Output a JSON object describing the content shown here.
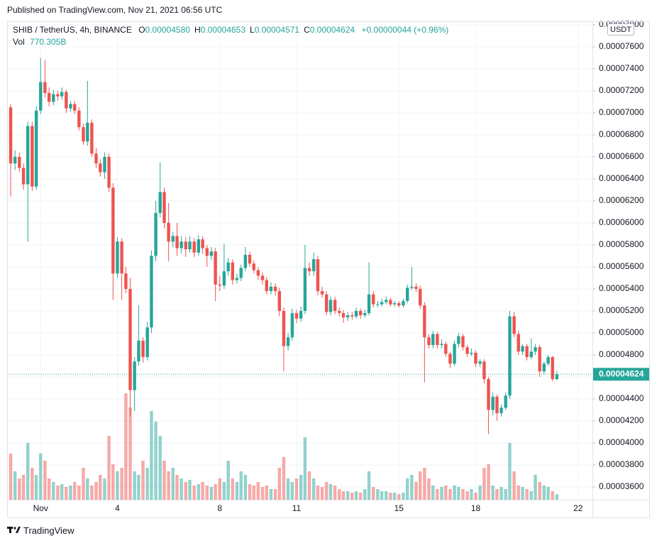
{
  "header": {
    "published": "Published on TradingView.com, Nov 21, 2021 06:56 UTC"
  },
  "footer": {
    "brand": "TradingView"
  },
  "chart_data": {
    "type": "candlestick",
    "legend": {
      "symbol": "SHIB / TetherUS, 4h, BINANCE",
      "fields": [
        {
          "key": "O",
          "value": "0.00004580"
        },
        {
          "key": "H",
          "value": "0.00004653"
        },
        {
          "key": "L",
          "value": "0.00004571"
        },
        {
          "key": "C",
          "value": "0.00004624"
        }
      ],
      "change": "+0.00000044 (+0.96%)",
      "volume_key": "Vol",
      "volume_label": "770.305B"
    },
    "currency": "USDT",
    "last_price_label": "0.00004624",
    "up_color": "#26a69a",
    "down_color": "#ef5350",
    "grid": true,
    "xlim": [
      -0.31,
      22.56
    ],
    "xticks": [
      {
        "value": 1,
        "label": "Nov"
      },
      4,
      8,
      11,
      15,
      18,
      22
    ],
    "ylim": [
      3.484e-05,
      7.832e-05
    ],
    "yticks": [
      {
        "value": 3.6e-05,
        "label": "0.00003600"
      },
      {
        "value": 3.8e-05,
        "label": "0.00003800"
      },
      {
        "value": 4e-05,
        "label": "0.00004000"
      },
      {
        "value": 4.2e-05,
        "label": "0.00004200"
      },
      {
        "value": 4.4e-05,
        "label": "0.00004400"
      },
      {
        "value": 4.6e-05,
        "label": "0.00004600"
      },
      {
        "value": 4.8e-05,
        "label": "0.00004800"
      },
      {
        "value": 5e-05,
        "label": "0.00005000"
      },
      {
        "value": 5.2e-05,
        "label": "0.00005200"
      },
      {
        "value": 5.4e-05,
        "label": "0.00005400"
      },
      {
        "value": 5.6e-05,
        "label": "0.00005600"
      },
      {
        "value": 5.8e-05,
        "label": "0.00005800"
      },
      {
        "value": 6e-05,
        "label": "0.00006000"
      },
      {
        "value": 6.2e-05,
        "label": "0.00006200"
      },
      {
        "value": 6.4e-05,
        "label": "0.00006400"
      },
      {
        "value": 6.6e-05,
        "label": "0.00006600"
      },
      {
        "value": 6.8e-05,
        "label": "0.00006800"
      },
      {
        "value": 7e-05,
        "label": "0.00007000"
      },
      {
        "value": 7.2e-05,
        "label": "0.00007200"
      },
      {
        "value": 7.4e-05,
        "label": "0.00007400"
      },
      {
        "value": 7.6e-05,
        "label": "0.00007600"
      },
      {
        "value": 7.8e-05,
        "label": "0.00007800"
      }
    ],
    "x": [
      -0.17,
      0,
      0.17,
      0.33,
      0.5,
      0.67,
      0.83,
      1,
      1.17,
      1.33,
      1.5,
      1.67,
      1.83,
      2,
      2.17,
      2.33,
      2.5,
      2.67,
      2.83,
      3,
      3.17,
      3.33,
      3.5,
      3.67,
      3.83,
      4,
      4.17,
      4.33,
      4.5,
      4.67,
      4.83,
      5,
      5.17,
      5.33,
      5.5,
      5.67,
      5.83,
      6,
      6.17,
      6.33,
      6.5,
      6.67,
      6.83,
      7,
      7.17,
      7.33,
      7.5,
      7.67,
      7.83,
      8,
      8.17,
      8.33,
      8.5,
      8.67,
      8.83,
      9,
      9.17,
      9.33,
      9.5,
      9.67,
      9.83,
      10,
      10.17,
      10.33,
      10.5,
      10.67,
      10.83,
      11,
      11.17,
      11.33,
      11.5,
      11.67,
      11.83,
      12,
      12.17,
      12.33,
      12.5,
      12.67,
      12.83,
      13,
      13.17,
      13.33,
      13.5,
      13.67,
      13.83,
      14,
      14.17,
      14.33,
      14.5,
      14.67,
      14.83,
      15,
      15.17,
      15.33,
      15.5,
      15.67,
      15.83,
      16,
      16.17,
      16.33,
      16.5,
      16.67,
      16.83,
      17,
      17.17,
      17.33,
      17.5,
      17.67,
      17.83,
      18,
      18.17,
      18.33,
      18.5,
      18.67,
      18.83,
      19,
      19.17,
      19.33,
      19.5,
      19.67,
      19.83,
      20,
      20.17,
      20.33,
      20.5,
      20.67,
      20.83,
      21,
      21.17
    ],
    "open": [
      7.05e-05,
      6.54e-05,
      6.6e-05,
      6.5e-05,
      6.35e-05,
      6.88e-05,
      6.33e-05,
      7.02e-05,
      7.28e-05,
      7.18e-05,
      7.1e-05,
      7.17e-05,
      7.15e-05,
      7.19e-05,
      7.04e-05,
      7.08e-05,
      7.02e-05,
      6.87e-05,
      6.74e-05,
      6.91e-05,
      6.63e-05,
      6.54e-05,
      6.46e-05,
      6.6e-05,
      6.32e-05,
      5.54e-05,
      5.83e-05,
      5.54e-05,
      5.4e-05,
      4.48e-05,
      4.74e-05,
      4.93e-05,
      4.78e-05,
      5.05e-05,
      5.7e-05,
      6.09e-05,
      6.28e-05,
      6e-05,
      5.83e-05,
      5.88e-05,
      5.77e-05,
      5.83e-05,
      5.76e-05,
      5.83e-05,
      5.73e-05,
      5.85e-05,
      5.77e-05,
      5.7e-05,
      5.74e-05,
      5.44e-05,
      5.43e-05,
      5.56e-05,
      5.64e-05,
      5.48e-05,
      5.5e-05,
      5.59e-05,
      5.71e-05,
      5.63e-05,
      5.57e-05,
      5.52e-05,
      5.48e-05,
      5.38e-05,
      5.42e-05,
      5.38e-05,
      5.2e-05,
      4.88e-05,
      4.96e-05,
      5.18e-05,
      5.13e-05,
      5.2e-05,
      5.59e-05,
      5.56e-05,
      5.67e-05,
      5.38e-05,
      5.35e-05,
      5.19e-05,
      5.3e-05,
      5.2e-05,
      5.18e-05,
      5.14e-05,
      5.16e-05,
      5.15e-05,
      5.2e-05,
      5.16e-05,
      5.18e-05,
      5.35e-05,
      5.26e-05,
      5.26e-05,
      5.28e-05,
      5.3e-05,
      5.26e-05,
      5.27e-05,
      5.25e-05,
      5.29e-05,
      5.41e-05,
      5.42e-05,
      5.4e-05,
      5.25e-05,
      4.96e-05,
      4.89e-05,
      4.99e-05,
      4.89e-05,
      4.9e-05,
      4.81e-05,
      4.72e-05,
      4.9e-05,
      4.97e-05,
      4.87e-05,
      4.81e-05,
      4.82e-05,
      4.72e-05,
      4.74e-05,
      4.58e-05,
      4.3e-05,
      4.42e-05,
      4.27e-05,
      4.32e-05,
      4.43e-05,
      5.15e-05,
      4.99e-05,
      4.83e-05,
      4.88e-05,
      4.78e-05,
      4.83e-05,
      4.87e-05,
      4.65e-05,
      4.72e-05,
      4.78e-05,
      4.58e-05
    ],
    "high": [
      7.08e-05,
      6.66e-05,
      6.64e-05,
      6.54e-05,
      6.92e-05,
      6.92e-05,
      7.06e-05,
      7.5e-05,
      7.48e-05,
      7.23e-05,
      7.21e-05,
      7.2e-05,
      7.23e-05,
      7.21e-05,
      7.11e-05,
      7.11e-05,
      7.05e-05,
      6.9e-05,
      7.29e-05,
      6.94e-05,
      6.68e-05,
      6.58e-05,
      6.64e-05,
      6.63e-05,
      6.36e-05,
      5.87e-05,
      5.86e-05,
      5.6e-05,
      5.5e-05,
      4.78e-05,
      5.25e-05,
      4.96e-05,
      5.1e-05,
      5.75e-05,
      6.2e-05,
      6.55e-05,
      6.32e-05,
      6.18e-05,
      5.92e-05,
      6e-05,
      5.88e-05,
      5.87e-05,
      5.88e-05,
      5.86e-05,
      5.89e-05,
      5.88e-05,
      5.8e-05,
      5.78e-05,
      5.77e-05,
      5.52e-05,
      5.81e-05,
      5.68e-05,
      5.67e-05,
      5.54e-05,
      5.62e-05,
      5.78e-05,
      5.74e-05,
      5.66e-05,
      5.6e-05,
      5.55e-05,
      5.51e-05,
      5.46e-05,
      5.45e-05,
      5.41e-05,
      5.23e-05,
      5e-05,
      5.22e-05,
      5.21e-05,
      5.24e-05,
      5.8e-05,
      5.64e-05,
      5.73e-05,
      5.7e-05,
      5.42e-05,
      5.38e-05,
      5.33e-05,
      5.33e-05,
      5.23e-05,
      5.21e-05,
      5.19e-05,
      5.19e-05,
      5.23e-05,
      5.22e-05,
      5.21e-05,
      5.64e-05,
      5.38e-05,
      5.29e-05,
      5.31e-05,
      5.33e-05,
      5.32e-05,
      5.29e-05,
      5.29e-05,
      5.31e-05,
      5.44e-05,
      5.6e-05,
      5.45e-05,
      5.43e-05,
      5.28e-05,
      4.99e-05,
      5.02e-05,
      5.01e-05,
      4.94e-05,
      4.92e-05,
      4.83e-05,
      4.93e-05,
      5e-05,
      4.99e-05,
      4.89e-05,
      4.86e-05,
      4.84e-05,
      4.76e-05,
      4.76e-05,
      4.6e-05,
      4.46e-05,
      4.44e-05,
      4.35e-05,
      4.46e-05,
      5.2e-05,
      5.19e-05,
      5.02e-05,
      4.9e-05,
      4.9e-05,
      4.95e-05,
      4.9e-05,
      4.89e-05,
      4.74e-05,
      4.8e-05,
      4.79e-05,
      4.653e-05
    ],
    "low": [
      6.24e-05,
      6.48e-05,
      6.46e-05,
      6.3e-05,
      5.83e-05,
      6.29e-05,
      6.3e-05,
      6.99e-05,
      7.14e-05,
      7.06e-05,
      7.07e-05,
      7.11e-05,
      7.12e-05,
      7e-05,
      7.01e-05,
      6.99e-05,
      6.84e-05,
      6.71e-05,
      6.7e-05,
      6.6e-05,
      6.5e-05,
      6.42e-05,
      6.4e-05,
      6.28e-05,
      5.3e-05,
      5.5e-05,
      5.3e-05,
      5.36e-05,
      4.24e-05,
      4.29e-05,
      4.7e-05,
      4.73e-05,
      4.75e-05,
      5e-05,
      5.65e-05,
      6.05e-05,
      5.95e-05,
      5.65e-05,
      5.78e-05,
      5.7e-05,
      5.72e-05,
      5.69e-05,
      5.73e-05,
      5.69e-05,
      5.7e-05,
      5.72e-05,
      5.6e-05,
      5.66e-05,
      5.29e-05,
      5.38e-05,
      5.4e-05,
      5.52e-05,
      5.44e-05,
      5.45e-05,
      5.47e-05,
      5.56e-05,
      5.6e-05,
      5.54e-05,
      5.48e-05,
      5.44e-05,
      5.35e-05,
      5.35e-05,
      5.34e-05,
      5.15e-05,
      4.65e-05,
      4.84e-05,
      4.93e-05,
      5.09e-05,
      5.1e-05,
      5.17e-05,
      5.52e-05,
      5.52e-05,
      5.34e-05,
      5.32e-05,
      5.16e-05,
      5.16e-05,
      5.17e-05,
      5.15e-05,
      5.09e-05,
      5.11e-05,
      5.12e-05,
      5.13e-05,
      5.13e-05,
      5.14e-05,
      5.16e-05,
      5.23e-05,
      5.23e-05,
      5.24e-05,
      5.26e-05,
      5.24e-05,
      5.24e-05,
      5.23e-05,
      5.23e-05,
      5.27e-05,
      5.39e-05,
      5.37e-05,
      5.22e-05,
      4.55e-05,
      4.86e-05,
      4.86e-05,
      4.86e-05,
      4.86e-05,
      4.78e-05,
      4.68e-05,
      4.7e-05,
      4.87e-05,
      4.84e-05,
      4.78e-05,
      4.79e-05,
      4.69e-05,
      4.69e-05,
      4.54e-05,
      4.08e-05,
      4.25e-05,
      4.2e-05,
      4.24e-05,
      4.3e-05,
      4.4e-05,
      4.96e-05,
      4.8e-05,
      4.8e-05,
      4.75e-05,
      4.76e-05,
      4.8e-05,
      4.6e-05,
      4.62e-05,
      4.7e-05,
      4.56e-05,
      4.571e-05
    ],
    "close": [
      6.54e-05,
      6.6e-05,
      6.5e-05,
      6.35e-05,
      6.88e-05,
      6.33e-05,
      7.02e-05,
      7.28e-05,
      7.18e-05,
      7.1e-05,
      7.17e-05,
      7.15e-05,
      7.19e-05,
      7.04e-05,
      7.08e-05,
      7.02e-05,
      6.87e-05,
      6.74e-05,
      6.91e-05,
      6.63e-05,
      6.54e-05,
      6.46e-05,
      6.6e-05,
      6.32e-05,
      5.54e-05,
      5.83e-05,
      5.54e-05,
      5.4e-05,
      4.48e-05,
      4.74e-05,
      4.93e-05,
      4.78e-05,
      5.05e-05,
      5.7e-05,
      6.09e-05,
      6.28e-05,
      6e-05,
      5.83e-05,
      5.88e-05,
      5.77e-05,
      5.83e-05,
      5.76e-05,
      5.83e-05,
      5.73e-05,
      5.85e-05,
      5.77e-05,
      5.7e-05,
      5.74e-05,
      5.44e-05,
      5.43e-05,
      5.56e-05,
      5.64e-05,
      5.48e-05,
      5.5e-05,
      5.59e-05,
      5.71e-05,
      5.63e-05,
      5.57e-05,
      5.52e-05,
      5.48e-05,
      5.38e-05,
      5.42e-05,
      5.38e-05,
      5.2e-05,
      4.88e-05,
      4.96e-05,
      5.18e-05,
      5.13e-05,
      5.2e-05,
      5.59e-05,
      5.56e-05,
      5.67e-05,
      5.38e-05,
      5.35e-05,
      5.19e-05,
      5.3e-05,
      5.2e-05,
      5.18e-05,
      5.14e-05,
      5.16e-05,
      5.15e-05,
      5.2e-05,
      5.16e-05,
      5.18e-05,
      5.35e-05,
      5.26e-05,
      5.26e-05,
      5.28e-05,
      5.3e-05,
      5.26e-05,
      5.27e-05,
      5.25e-05,
      5.29e-05,
      5.41e-05,
      5.42e-05,
      5.4e-05,
      5.25e-05,
      4.96e-05,
      4.89e-05,
      4.99e-05,
      4.89e-05,
      4.9e-05,
      4.81e-05,
      4.72e-05,
      4.9e-05,
      4.97e-05,
      4.87e-05,
      4.81e-05,
      4.82e-05,
      4.72e-05,
      4.74e-05,
      4.58e-05,
      4.3e-05,
      4.42e-05,
      4.27e-05,
      4.32e-05,
      4.43e-05,
      5.15e-05,
      4.99e-05,
      4.83e-05,
      4.88e-05,
      4.78e-05,
      4.83e-05,
      4.87e-05,
      4.65e-05,
      4.72e-05,
      4.78e-05,
      4.58e-05,
      4.624e-05
    ],
    "volume": [
      6500,
      4000,
      3000,
      3500,
      8000,
      4500,
      3500,
      6500,
      5500,
      3000,
      2500,
      2000,
      2200,
      1800,
      2000,
      2500,
      2000,
      4500,
      3000,
      2000,
      2500,
      3500,
      3000,
      9000,
      5000,
      4000,
      4500,
      15000,
      13000,
      4000,
      3500,
      5500,
      4500,
      12500,
      11000,
      9000,
      5500,
      4000,
      4500,
      3500,
      3000,
      2500,
      2800,
      2000,
      2200,
      2500,
      2000,
      1800,
      2200,
      3000,
      2500,
      5500,
      3000,
      2500,
      4000,
      3500,
      2200,
      2000,
      2500,
      1800,
      2000,
      1500,
      1500,
      4500,
      6000,
      3000,
      2500,
      3000,
      3500,
      8800,
      4000,
      3000,
      2000,
      1800,
      2500,
      2200,
      2000,
      1500,
      1200,
      1200,
      1000,
      1200,
      1000,
      1500,
      4000,
      1800,
      1500,
      1200,
      1200,
      1000,
      1000,
      800,
      1000,
      3000,
      3500,
      2500,
      4000,
      4500,
      3000,
      2000,
      1500,
      1800,
      2000,
      1500,
      2000,
      1800,
      1500,
      1200,
      1500,
      1000,
      2000,
      4500,
      5000,
      2000,
      1500,
      1800,
      1500,
      8000,
      4000,
      2000,
      1800,
      1500,
      1200,
      3500,
      2500,
      2000,
      1800,
      1200,
      770.305
    ]
  }
}
